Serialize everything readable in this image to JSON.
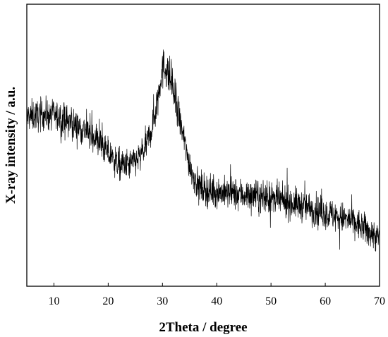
{
  "chart_data": {
    "type": "line",
    "title": "",
    "xlabel": "2Theta / degree",
    "ylabel": "X-ray intensity / a.u.",
    "xlim": [
      5,
      70
    ],
    "ylim": [
      0,
      1
    ],
    "xticks": [
      10,
      20,
      30,
      40,
      50,
      60,
      70
    ],
    "yticks_shown": false,
    "grid": false,
    "legend": "none",
    "line_color": "#000000",
    "series": [
      {
        "x": [
          5,
          8,
          10,
          12,
          14,
          16,
          18,
          20,
          22,
          24,
          26,
          27,
          28,
          29,
          29.8,
          30.5,
          31.5,
          32.5,
          33.5,
          34.5,
          35.5,
          36.5,
          38,
          40,
          42,
          45,
          50,
          55,
          60,
          65,
          70
        ],
        "y": [
          0.6,
          0.61,
          0.605,
          0.59,
          0.57,
          0.55,
          0.52,
          0.47,
          0.43,
          0.43,
          0.46,
          0.5,
          0.56,
          0.65,
          0.76,
          0.78,
          0.73,
          0.65,
          0.56,
          0.47,
          0.4,
          0.36,
          0.34,
          0.335,
          0.33,
          0.325,
          0.31,
          0.29,
          0.26,
          0.23,
          0.17
        ]
      }
    ]
  }
}
